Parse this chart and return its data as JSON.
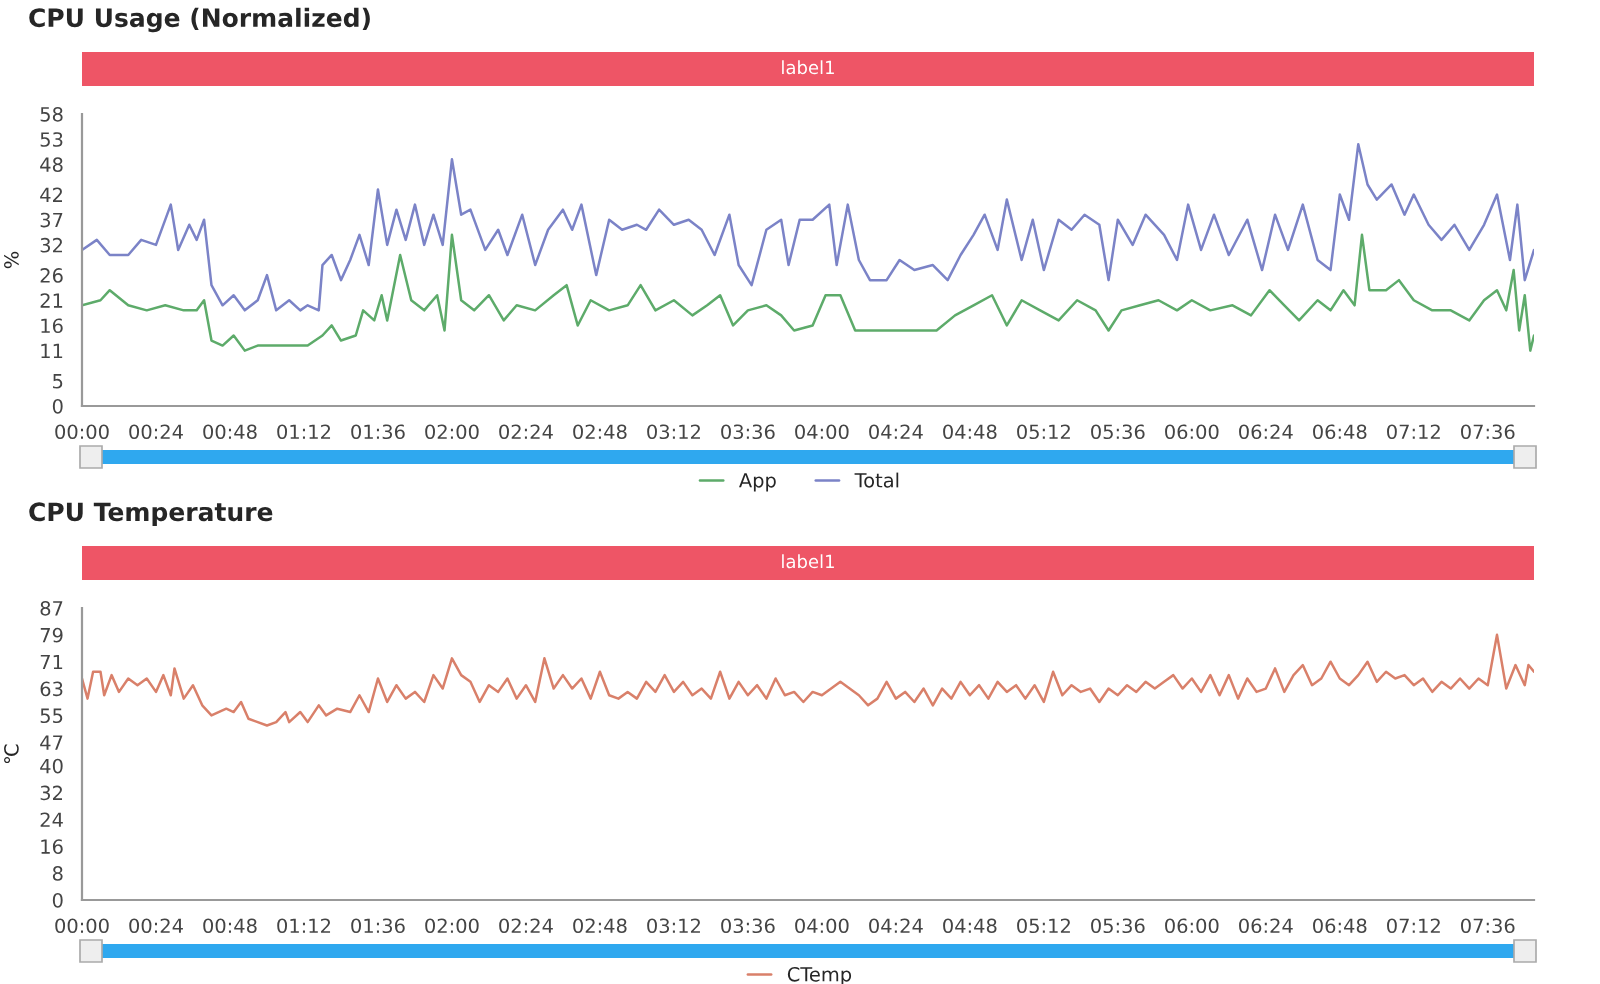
{
  "chart_data": [
    {
      "type": "line",
      "title": "CPU Usage (Normalized)",
      "ylabel": "%",
      "annotations": [
        "label1"
      ],
      "xlim": [
        0,
        7.85
      ],
      "ylim": [
        0,
        58
      ],
      "xticks": [
        {
          "value": 0,
          "label": "00:00"
        },
        {
          "value": 0.4,
          "label": "00:24"
        },
        {
          "value": 0.8,
          "label": "00:48"
        },
        {
          "value": 1.2,
          "label": "01:12"
        },
        {
          "value": 1.6,
          "label": "01:36"
        },
        {
          "value": 2.0,
          "label": "02:00"
        },
        {
          "value": 2.4,
          "label": "02:24"
        },
        {
          "value": 2.8,
          "label": "02:48"
        },
        {
          "value": 3.2,
          "label": "03:12"
        },
        {
          "value": 3.6,
          "label": "03:36"
        },
        {
          "value": 4.0,
          "label": "04:00"
        },
        {
          "value": 4.4,
          "label": "04:24"
        },
        {
          "value": 4.8,
          "label": "04:48"
        },
        {
          "value": 5.2,
          "label": "05:12"
        },
        {
          "value": 5.6,
          "label": "05:36"
        },
        {
          "value": 6.0,
          "label": "06:00"
        },
        {
          "value": 6.4,
          "label": "06:24"
        },
        {
          "value": 6.8,
          "label": "06:48"
        },
        {
          "value": 7.2,
          "label": "07:12"
        },
        {
          "value": 7.6,
          "label": "07:36"
        }
      ],
      "yticks": [
        0,
        5,
        11,
        16,
        21,
        26,
        32,
        37,
        42,
        48,
        53,
        58
      ],
      "grid": false,
      "legend": "bottom",
      "marker": "none",
      "line_style": "solid",
      "series": [
        {
          "name": "App",
          "color": "#5dab6a",
          "x": [
            0.0,
            0.1,
            0.15,
            0.25,
            0.35,
            0.45,
            0.55,
            0.62,
            0.66,
            0.7,
            0.76,
            0.82,
            0.88,
            0.95,
            1.05,
            1.15,
            1.22,
            1.3,
            1.35,
            1.4,
            1.48,
            1.52,
            1.58,
            1.62,
            1.65,
            1.72,
            1.78,
            1.85,
            1.92,
            1.96,
            2.0,
            2.05,
            2.12,
            2.2,
            2.28,
            2.35,
            2.45,
            2.55,
            2.62,
            2.68,
            2.75,
            2.85,
            2.95,
            3.02,
            3.1,
            3.2,
            3.3,
            3.38,
            3.45,
            3.52,
            3.6,
            3.7,
            3.78,
            3.85,
            3.95,
            4.02,
            4.1,
            4.18,
            4.26,
            4.4,
            4.5,
            4.62,
            4.72,
            4.82,
            4.92,
            5.0,
            5.08,
            5.18,
            5.28,
            5.38,
            5.48,
            5.55,
            5.62,
            5.72,
            5.82,
            5.92,
            6.0,
            6.1,
            6.22,
            6.32,
            6.42,
            6.5,
            6.58,
            6.68,
            6.75,
            6.82,
            6.88,
            6.92,
            6.96,
            7.05,
            7.12,
            7.2,
            7.3,
            7.4,
            7.5,
            7.58,
            7.65,
            7.7,
            7.74,
            7.77,
            7.8,
            7.83,
            7.85
          ],
          "values": [
            20,
            21,
            23,
            20,
            19,
            20,
            19,
            19,
            21,
            13,
            12,
            14,
            11,
            12,
            12,
            12,
            12,
            14,
            16,
            13,
            14,
            19,
            17,
            22,
            17,
            30,
            21,
            19,
            22,
            15,
            34,
            21,
            19,
            22,
            17,
            20,
            19,
            22,
            24,
            16,
            21,
            19,
            20,
            24,
            19,
            21,
            18,
            20,
            22,
            16,
            19,
            20,
            18,
            15,
            16,
            22,
            22,
            15,
            15,
            15,
            15,
            15,
            18,
            20,
            22,
            16,
            21,
            19,
            17,
            21,
            19,
            15,
            19,
            20,
            21,
            19,
            21,
            19,
            20,
            18,
            23,
            20,
            17,
            21,
            19,
            23,
            20,
            34,
            23,
            23,
            25,
            21,
            19,
            19,
            17,
            21,
            23,
            19,
            27,
            15,
            22,
            11,
            14
          ]
        },
        {
          "name": "Total",
          "color": "#7b83c7",
          "x": [
            0.0,
            0.08,
            0.15,
            0.25,
            0.32,
            0.4,
            0.48,
            0.52,
            0.58,
            0.62,
            0.66,
            0.7,
            0.76,
            0.82,
            0.88,
            0.95,
            1.0,
            1.05,
            1.12,
            1.18,
            1.22,
            1.28,
            1.3,
            1.35,
            1.4,
            1.45,
            1.5,
            1.55,
            1.6,
            1.65,
            1.7,
            1.75,
            1.8,
            1.85,
            1.9,
            1.95,
            2.0,
            2.05,
            2.1,
            2.18,
            2.25,
            2.3,
            2.38,
            2.45,
            2.52,
            2.6,
            2.65,
            2.7,
            2.78,
            2.85,
            2.92,
            3.0,
            3.05,
            3.12,
            3.2,
            3.28,
            3.35,
            3.42,
            3.5,
            3.55,
            3.62,
            3.7,
            3.78,
            3.82,
            3.88,
            3.95,
            4.04,
            4.08,
            4.14,
            4.2,
            4.26,
            4.35,
            4.42,
            4.5,
            4.6,
            4.68,
            4.75,
            4.82,
            4.88,
            4.95,
            5.0,
            5.08,
            5.14,
            5.2,
            5.28,
            5.35,
            5.42,
            5.5,
            5.55,
            5.6,
            5.68,
            5.75,
            5.85,
            5.92,
            5.98,
            6.05,
            6.12,
            6.2,
            6.3,
            6.38,
            6.45,
            6.52,
            6.6,
            6.68,
            6.75,
            6.8,
            6.85,
            6.9,
            6.95,
            7.0,
            7.08,
            7.15,
            7.2,
            7.28,
            7.35,
            7.42,
            7.5,
            7.58,
            7.65,
            7.72,
            7.76,
            7.8,
            7.85
          ],
          "values": [
            31,
            33,
            30,
            30,
            33,
            32,
            40,
            31,
            36,
            33,
            37,
            24,
            20,
            22,
            19,
            21,
            26,
            19,
            21,
            19,
            20,
            19,
            28,
            30,
            25,
            29,
            34,
            28,
            43,
            32,
            39,
            33,
            40,
            32,
            38,
            32,
            49,
            38,
            39,
            31,
            35,
            30,
            38,
            28,
            35,
            39,
            35,
            40,
            26,
            37,
            35,
            36,
            35,
            39,
            36,
            37,
            35,
            30,
            38,
            28,
            24,
            35,
            37,
            28,
            37,
            37,
            40,
            28,
            40,
            29,
            25,
            25,
            29,
            27,
            28,
            25,
            30,
            34,
            38,
            31,
            41,
            29,
            37,
            27,
            37,
            35,
            38,
            36,
            25,
            37,
            32,
            38,
            34,
            29,
            40,
            31,
            38,
            30,
            37,
            27,
            38,
            31,
            40,
            29,
            27,
            42,
            37,
            52,
            44,
            41,
            44,
            38,
            42,
            36,
            33,
            36,
            31,
            36,
            42,
            29,
            40,
            25,
            31
          ]
        }
      ]
    },
    {
      "type": "line",
      "title": "CPU Temperature",
      "ylabel": "℃",
      "annotations": [
        "label1"
      ],
      "xlim": [
        0,
        7.85
      ],
      "ylim": [
        0,
        87
      ],
      "xticks": [
        {
          "value": 0,
          "label": "00:00"
        },
        {
          "value": 0.4,
          "label": "00:24"
        },
        {
          "value": 0.8,
          "label": "00:48"
        },
        {
          "value": 1.2,
          "label": "01:12"
        },
        {
          "value": 1.6,
          "label": "01:36"
        },
        {
          "value": 2.0,
          "label": "02:00"
        },
        {
          "value": 2.4,
          "label": "02:24"
        },
        {
          "value": 2.8,
          "label": "02:48"
        },
        {
          "value": 3.2,
          "label": "03:12"
        },
        {
          "value": 3.6,
          "label": "03:36"
        },
        {
          "value": 4.0,
          "label": "04:00"
        },
        {
          "value": 4.4,
          "label": "04:24"
        },
        {
          "value": 4.8,
          "label": "04:48"
        },
        {
          "value": 5.2,
          "label": "05:12"
        },
        {
          "value": 5.6,
          "label": "05:36"
        },
        {
          "value": 6.0,
          "label": "06:00"
        },
        {
          "value": 6.4,
          "label": "06:24"
        },
        {
          "value": 6.8,
          "label": "06:48"
        },
        {
          "value": 7.2,
          "label": "07:12"
        },
        {
          "value": 7.6,
          "label": "07:36"
        }
      ],
      "yticks": [
        0,
        8,
        16,
        24,
        32,
        40,
        47,
        55,
        63,
        71,
        79,
        87
      ],
      "grid": false,
      "legend": "bottom",
      "marker": "none",
      "line_style": "solid",
      "series": [
        {
          "name": "CTemp",
          "color": "#d9806a",
          "x": [
            0.0,
            0.03,
            0.06,
            0.1,
            0.12,
            0.16,
            0.2,
            0.25,
            0.3,
            0.35,
            0.4,
            0.44,
            0.48,
            0.5,
            0.55,
            0.6,
            0.65,
            0.7,
            0.78,
            0.82,
            0.86,
            0.9,
            0.95,
            1.0,
            1.05,
            1.1,
            1.12,
            1.18,
            1.22,
            1.28,
            1.32,
            1.38,
            1.45,
            1.5,
            1.55,
            1.6,
            1.65,
            1.7,
            1.75,
            1.8,
            1.85,
            1.9,
            1.95,
            2.0,
            2.05,
            2.1,
            2.15,
            2.2,
            2.25,
            2.3,
            2.35,
            2.4,
            2.45,
            2.5,
            2.55,
            2.6,
            2.65,
            2.7,
            2.75,
            2.8,
            2.85,
            2.9,
            2.95,
            3.0,
            3.05,
            3.1,
            3.15,
            3.2,
            3.25,
            3.3,
            3.35,
            3.4,
            3.45,
            3.5,
            3.55,
            3.6,
            3.65,
            3.7,
            3.75,
            3.8,
            3.85,
            3.9,
            3.95,
            4.0,
            4.05,
            4.1,
            4.15,
            4.2,
            4.25,
            4.3,
            4.35,
            4.4,
            4.45,
            4.5,
            4.55,
            4.6,
            4.65,
            4.7,
            4.75,
            4.8,
            4.85,
            4.9,
            4.95,
            5.0,
            5.05,
            5.1,
            5.15,
            5.2,
            5.25,
            5.3,
            5.35,
            5.4,
            5.45,
            5.5,
            5.55,
            5.6,
            5.65,
            5.7,
            5.75,
            5.8,
            5.85,
            5.9,
            5.95,
            6.0,
            6.05,
            6.1,
            6.15,
            6.2,
            6.25,
            6.3,
            6.35,
            6.4,
            6.45,
            6.5,
            6.55,
            6.6,
            6.65,
            6.7,
            6.75,
            6.8,
            6.85,
            6.9,
            6.95,
            7.0,
            7.05,
            7.1,
            7.15,
            7.2,
            7.25,
            7.3,
            7.35,
            7.4,
            7.45,
            7.5,
            7.55,
            7.6,
            7.65,
            7.7,
            7.75,
            7.8,
            7.82,
            7.85
          ],
          "values": [
            66,
            60,
            68,
            68,
            61,
            67,
            62,
            66,
            64,
            66,
            62,
            67,
            61,
            69,
            60,
            64,
            58,
            55,
            57,
            56,
            59,
            54,
            53,
            52,
            53,
            56,
            53,
            56,
            53,
            58,
            55,
            57,
            56,
            61,
            56,
            66,
            59,
            64,
            60,
            62,
            59,
            67,
            63,
            72,
            67,
            65,
            59,
            64,
            62,
            66,
            60,
            64,
            59,
            72,
            63,
            67,
            63,
            66,
            60,
            68,
            61,
            60,
            62,
            60,
            65,
            62,
            67,
            62,
            65,
            61,
            63,
            60,
            68,
            60,
            65,
            61,
            64,
            60,
            66,
            61,
            62,
            59,
            62,
            61,
            63,
            65,
            63,
            61,
            58,
            60,
            65,
            60,
            62,
            59,
            63,
            58,
            63,
            60,
            65,
            61,
            64,
            60,
            65,
            62,
            64,
            60,
            64,
            59,
            68,
            61,
            64,
            62,
            63,
            59,
            63,
            61,
            64,
            62,
            65,
            63,
            65,
            67,
            63,
            66,
            62,
            67,
            61,
            67,
            60,
            66,
            62,
            63,
            69,
            62,
            67,
            70,
            64,
            66,
            71,
            66,
            64,
            67,
            71,
            65,
            68,
            66,
            67,
            64,
            66,
            62,
            65,
            63,
            66,
            63,
            66,
            64,
            79,
            63,
            70,
            64,
            70,
            68
          ]
        }
      ]
    }
  ]
}
